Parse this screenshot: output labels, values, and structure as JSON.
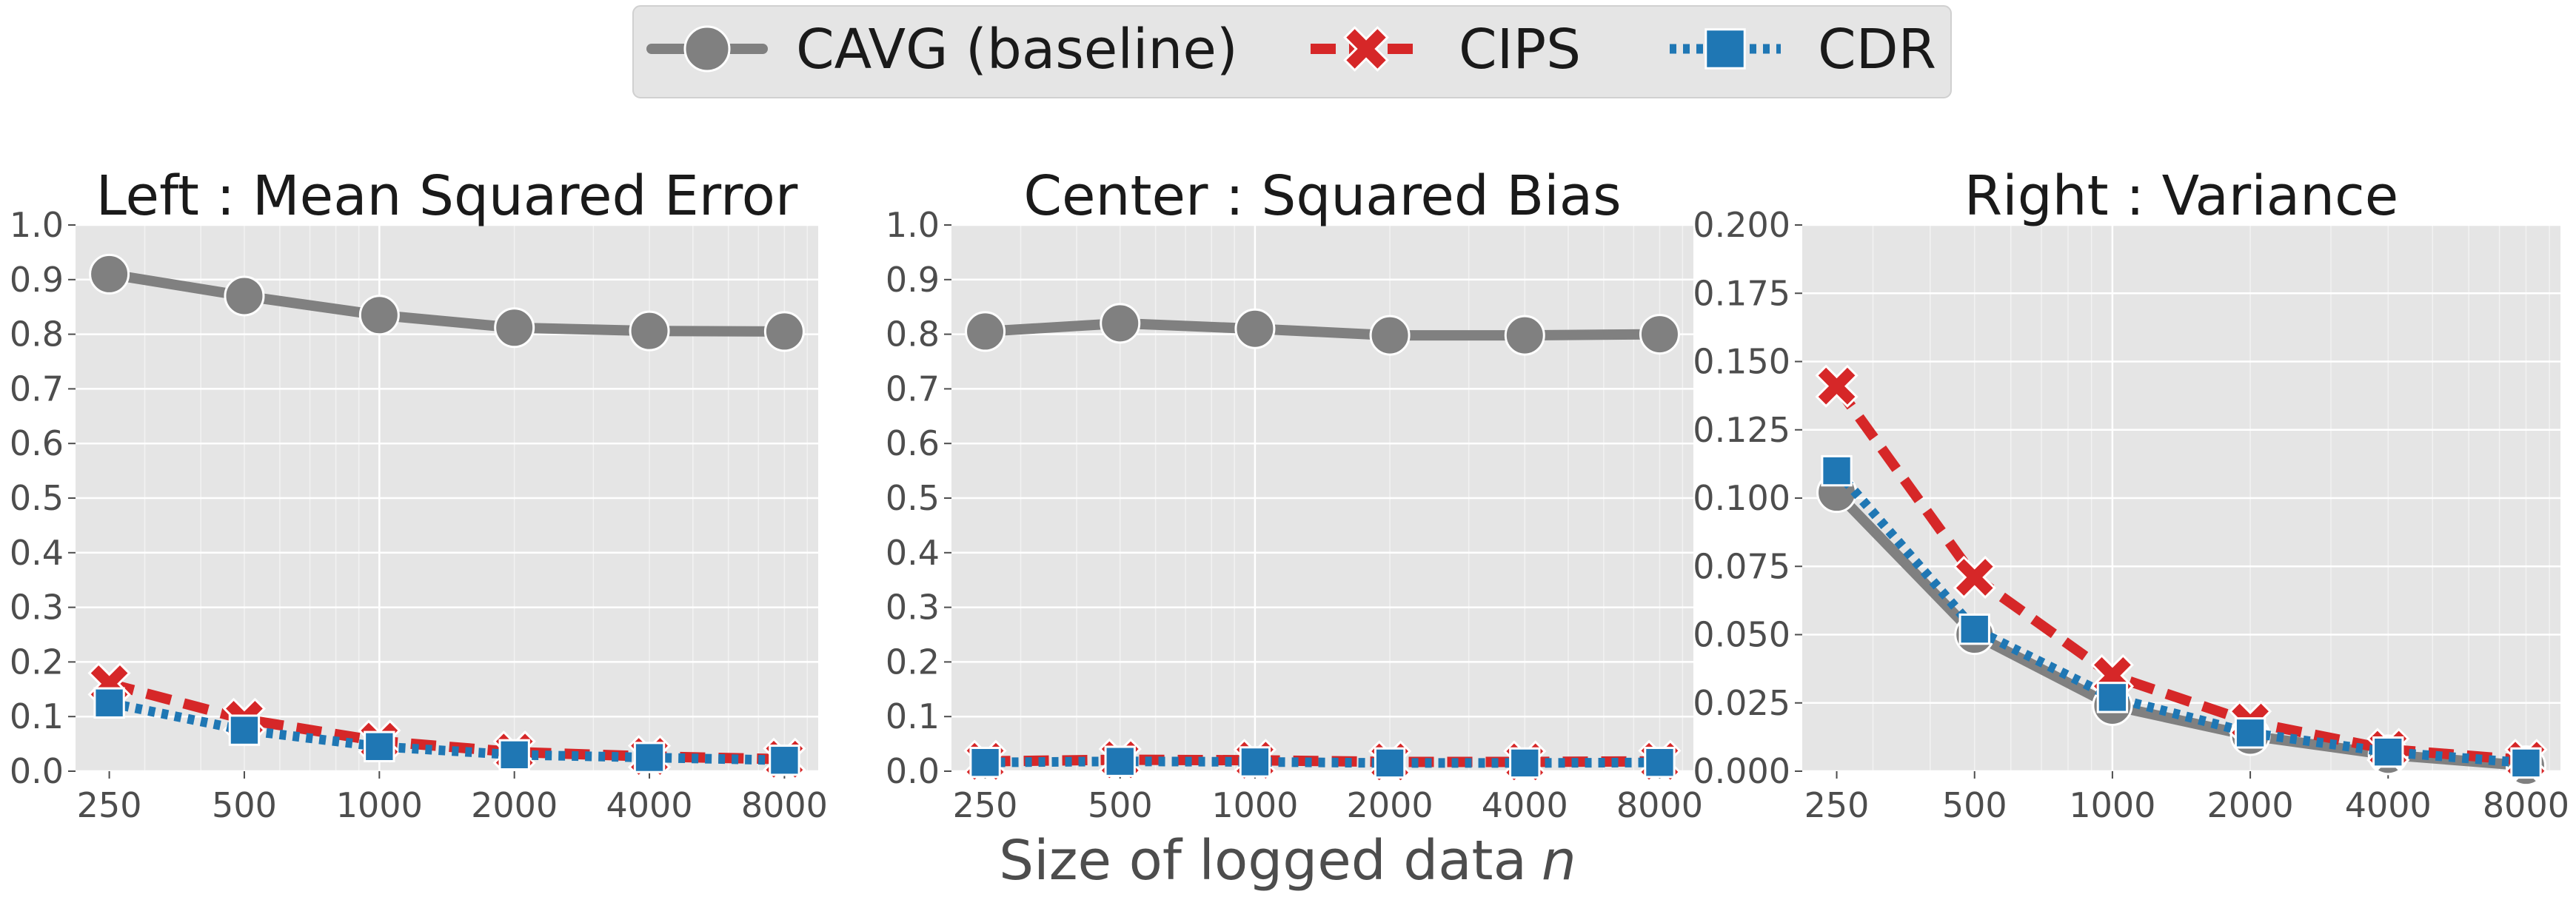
{
  "figure": {
    "xlabel": "Size of logged data",
    "xlabel_var": "n"
  },
  "legend": {
    "placement": "top-center",
    "entries": [
      {
        "name": "CAVG (baseline)",
        "color": "#808080",
        "marker": "circle",
        "linestyle": "solid"
      },
      {
        "name": "CIPS",
        "color": "#d62728",
        "marker": "x",
        "linestyle": "dashed"
      },
      {
        "name": "CDR",
        "color": "#1f77b4",
        "marker": "square",
        "linestyle": "dotted"
      }
    ]
  },
  "chart_data": [
    {
      "type": "line",
      "title": "Left : Mean Squared Error",
      "xscale": "log",
      "categories": [
        "250",
        "500",
        "1000",
        "2000",
        "4000",
        "8000"
      ],
      "x": [
        250,
        500,
        1000,
        2000,
        4000,
        8000
      ],
      "ylim": [
        0,
        1.0
      ],
      "yticks": [
        "0.0",
        "0.1",
        "0.2",
        "0.3",
        "0.4",
        "0.5",
        "0.6",
        "0.7",
        "0.8",
        "0.9",
        "1.0"
      ],
      "ytick_values": [
        0,
        0.1,
        0.2,
        0.3,
        0.4,
        0.5,
        0.6,
        0.7,
        0.8,
        0.9,
        1.0
      ],
      "grid": true,
      "series": [
        {
          "name": "CAVG (baseline)",
          "values": [
            0.91,
            0.87,
            0.835,
            0.812,
            0.806,
            0.805
          ]
        },
        {
          "name": "CIPS",
          "values": [
            0.16,
            0.095,
            0.055,
            0.035,
            0.027,
            0.022
          ]
        },
        {
          "name": "CDR",
          "values": [
            0.125,
            0.075,
            0.045,
            0.03,
            0.025,
            0.02
          ]
        }
      ]
    },
    {
      "type": "line",
      "title": "Center : Squared Bias",
      "xscale": "log",
      "categories": [
        "250",
        "500",
        "1000",
        "2000",
        "4000",
        "8000"
      ],
      "x": [
        250,
        500,
        1000,
        2000,
        4000,
        8000
      ],
      "ylim": [
        0,
        1.0
      ],
      "yticks": [
        "0.0",
        "0.1",
        "0.2",
        "0.3",
        "0.4",
        "0.5",
        "0.6",
        "0.7",
        "0.8",
        "0.9",
        "1.0"
      ],
      "ytick_values": [
        0,
        0.1,
        0.2,
        0.3,
        0.4,
        0.5,
        0.6,
        0.7,
        0.8,
        0.9,
        1.0
      ],
      "grid": true,
      "series": [
        {
          "name": "CAVG (baseline)",
          "values": [
            0.805,
            0.82,
            0.81,
            0.798,
            0.798,
            0.8
          ]
        },
        {
          "name": "CIPS",
          "values": [
            0.018,
            0.021,
            0.02,
            0.017,
            0.017,
            0.018
          ]
        },
        {
          "name": "CDR",
          "values": [
            0.016,
            0.018,
            0.017,
            0.015,
            0.015,
            0.016
          ]
        }
      ]
    },
    {
      "type": "line",
      "title": "Right : Variance",
      "xscale": "log",
      "categories": [
        "250",
        "500",
        "1000",
        "2000",
        "4000",
        "8000"
      ],
      "x": [
        250,
        500,
        1000,
        2000,
        4000,
        8000
      ],
      "ylim": [
        0,
        0.2
      ],
      "yticks": [
        "0.000",
        "0.025",
        "0.050",
        "0.075",
        "0.100",
        "0.125",
        "0.150",
        "0.175",
        "0.200"
      ],
      "ytick_values": [
        0,
        0.025,
        0.05,
        0.075,
        0.1,
        0.125,
        0.15,
        0.175,
        0.2
      ],
      "grid": true,
      "series": [
        {
          "name": "CAVG (baseline)",
          "values": [
            0.102,
            0.05,
            0.024,
            0.013,
            0.006,
            0.002
          ]
        },
        {
          "name": "CIPS",
          "values": [
            0.141,
            0.071,
            0.035,
            0.018,
            0.008,
            0.004
          ]
        },
        {
          "name": "CDR",
          "values": [
            0.11,
            0.052,
            0.027,
            0.014,
            0.007,
            0.003
          ]
        }
      ]
    }
  ]
}
